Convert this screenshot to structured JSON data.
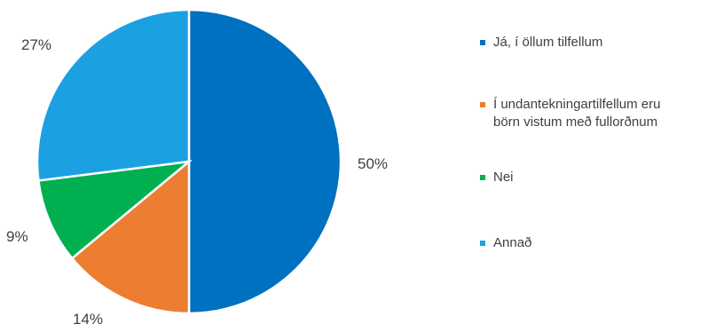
{
  "chart_data": {
    "type": "pie",
    "categories": [
      "Já, í öllum tilfellum",
      "Í undantekningartilfellum eru börn vistum með fullorðnum",
      "Nei",
      "Annað"
    ],
    "values": [
      50,
      14,
      9,
      27
    ],
    "data_labels": [
      "50%",
      "14%",
      "9%",
      "27%"
    ],
    "colors": [
      "#0070C0",
      "#ED7D31",
      "#00B050",
      "#1BA1E2"
    ],
    "legend_position": "right",
    "title": ""
  },
  "legend": {
    "items": [
      {
        "line1": "Já, í öllum tilfellum",
        "line2": "",
        "color": "#0070C0"
      },
      {
        "line1": "Í undantekningartilfellum eru",
        "line2": "börn vistum með fullorðnum",
        "color": "#ED7D31"
      },
      {
        "line1": "Nei",
        "line2": "",
        "color": "#00B050"
      },
      {
        "line1": "Annað",
        "line2": "",
        "color": "#1BA1E2"
      }
    ]
  }
}
